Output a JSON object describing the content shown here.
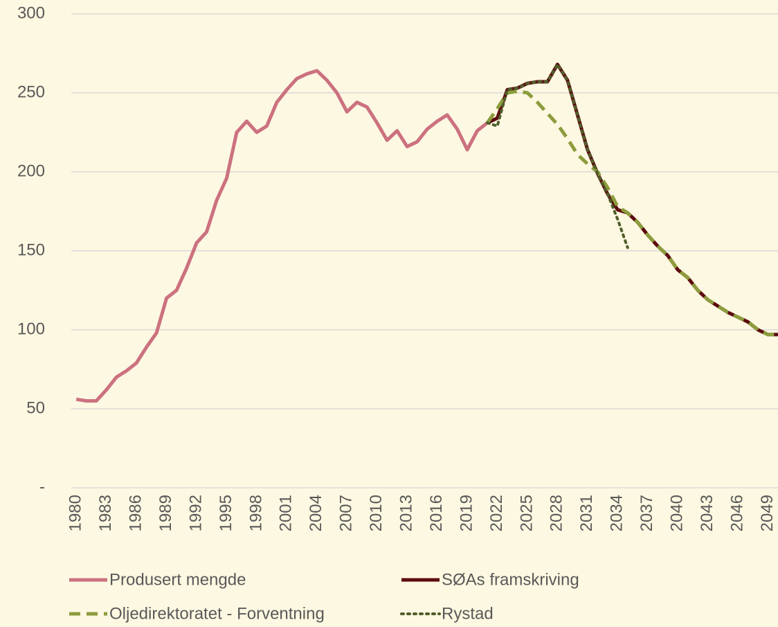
{
  "chart_data": {
    "type": "line",
    "x": [
      1980,
      1981,
      1982,
      1983,
      1984,
      1985,
      1986,
      1987,
      1988,
      1989,
      1990,
      1991,
      1992,
      1993,
      1994,
      1995,
      1996,
      1997,
      1998,
      1999,
      2000,
      2001,
      2002,
      2003,
      2004,
      2005,
      2006,
      2007,
      2008,
      2009,
      2010,
      2011,
      2012,
      2013,
      2014,
      2015,
      2016,
      2017,
      2018,
      2019,
      2020,
      2021,
      2022,
      2023,
      2024,
      2025,
      2026,
      2027,
      2028,
      2029,
      2030,
      2031,
      2032,
      2033,
      2034,
      2035,
      2036,
      2037,
      2038,
      2039,
      2040,
      2041,
      2042,
      2043,
      2044,
      2045,
      2046,
      2047,
      2048,
      2049,
      2050
    ],
    "xlim": [
      1979.5,
      2050
    ],
    "xticks": [
      1980,
      1983,
      1986,
      1989,
      1992,
      1995,
      1998,
      2001,
      2004,
      2007,
      2010,
      2013,
      2016,
      2019,
      2022,
      2025,
      2028,
      2031,
      2034,
      2037,
      2040,
      2043,
      2046,
      2049
    ],
    "ylim": [
      0,
      300
    ],
    "yticks": [
      {
        "value": 0,
        "label": "-"
      },
      50,
      100,
      150,
      200,
      250,
      300
    ],
    "grid": true,
    "legend": "bottom",
    "series": [
      {
        "name": "Produsert mengde",
        "color": "#cc717f",
        "dash": "solid",
        "values": [
          56,
          55,
          55,
          62,
          70,
          74,
          79,
          89,
          98,
          120,
          125,
          139,
          155,
          162,
          182,
          196,
          225,
          232,
          225,
          229,
          244,
          252,
          259,
          262,
          264,
          258,
          250,
          238,
          244,
          241,
          231,
          220,
          226,
          216,
          219,
          227,
          232,
          236,
          227,
          214,
          226,
          231,
          null,
          null,
          null,
          null,
          null,
          null,
          null,
          null,
          null,
          null,
          null,
          null,
          null,
          null,
          null,
          null,
          null,
          null,
          null,
          null,
          null,
          null,
          null,
          null,
          null,
          null,
          null,
          null,
          null
        ]
      },
      {
        "name": "SØAs framskriving",
        "color": "#5c0a0e",
        "dash": "solid",
        "values": [
          null,
          null,
          null,
          null,
          null,
          null,
          null,
          null,
          null,
          null,
          null,
          null,
          null,
          null,
          null,
          null,
          null,
          null,
          null,
          null,
          null,
          null,
          null,
          null,
          null,
          null,
          null,
          null,
          null,
          null,
          null,
          null,
          null,
          null,
          null,
          null,
          null,
          null,
          null,
          null,
          null,
          231,
          234,
          252,
          253,
          256,
          257,
          257,
          268,
          258,
          236,
          214,
          199,
          186,
          176,
          174,
          168,
          160,
          153,
          147,
          138,
          133,
          125,
          119,
          115,
          111,
          108,
          105,
          100,
          97,
          97
        ]
      },
      {
        "name": "Oljedirektoratet - Forventning",
        "color": "#8c9c3c",
        "dash": "dashed",
        "values": [
          null,
          null,
          null,
          null,
          null,
          null,
          null,
          null,
          null,
          null,
          null,
          null,
          null,
          null,
          null,
          null,
          null,
          null,
          null,
          null,
          null,
          null,
          null,
          null,
          null,
          null,
          null,
          null,
          null,
          null,
          null,
          null,
          null,
          null,
          null,
          null,
          null,
          null,
          null,
          null,
          null,
          231,
          240,
          250,
          251,
          250,
          244,
          237,
          230,
          221,
          211,
          205,
          200,
          190,
          178,
          174,
          168,
          160,
          153,
          147,
          138,
          133,
          125,
          119,
          115,
          111,
          108,
          105,
          100,
          97,
          97
        ]
      },
      {
        "name": "Rystad",
        "color": "#4f5e2a",
        "dash": "dotted",
        "values": [
          null,
          null,
          null,
          null,
          null,
          null,
          null,
          null,
          null,
          null,
          null,
          null,
          null,
          null,
          null,
          null,
          null,
          null,
          null,
          null,
          null,
          null,
          null,
          null,
          null,
          null,
          null,
          null,
          null,
          null,
          null,
          null,
          null,
          null,
          null,
          null,
          null,
          null,
          null,
          null,
          null,
          231,
          229,
          252,
          253,
          256,
          257,
          257,
          268,
          258,
          236,
          214,
          199,
          186,
          170,
          152,
          null,
          null,
          null,
          null,
          null,
          null,
          null,
          null,
          null,
          null,
          null,
          null,
          null,
          null,
          null
        ]
      }
    ]
  }
}
